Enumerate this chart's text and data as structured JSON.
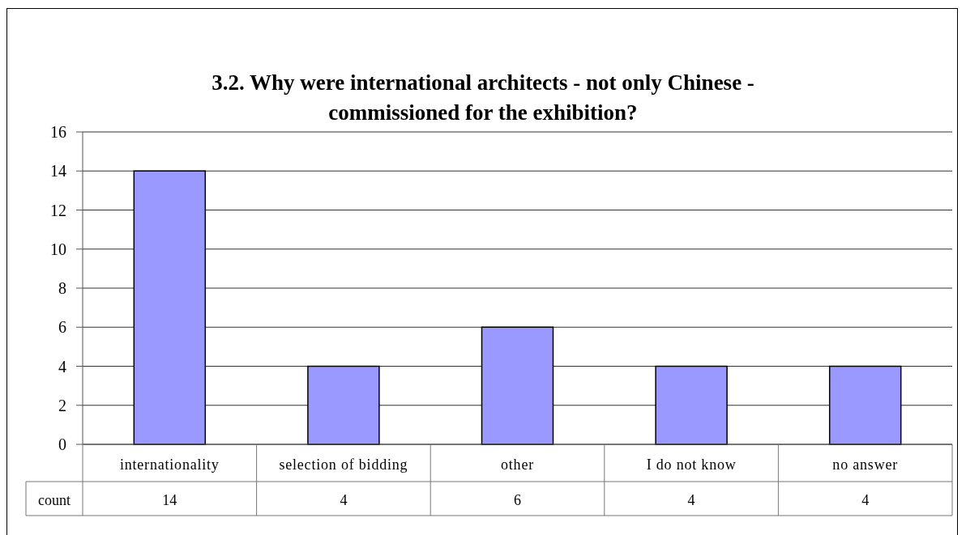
{
  "chart_data": {
    "type": "bar",
    "title": "3.2. Why were international architects - not only Chinese - commissioned for the exhibition?",
    "categories": [
      "internationality",
      "selection of bidding",
      "other",
      "I do not know",
      "no answer"
    ],
    "series": [
      {
        "name": "count",
        "color": "#9999ff",
        "values": [
          14,
          4,
          6,
          4,
          4
        ]
      }
    ],
    "ylim": [
      0,
      16
    ],
    "yticks": [
      0,
      2,
      4,
      6,
      8,
      10,
      12,
      14,
      16
    ],
    "grid": "y",
    "data_labels": true
  }
}
